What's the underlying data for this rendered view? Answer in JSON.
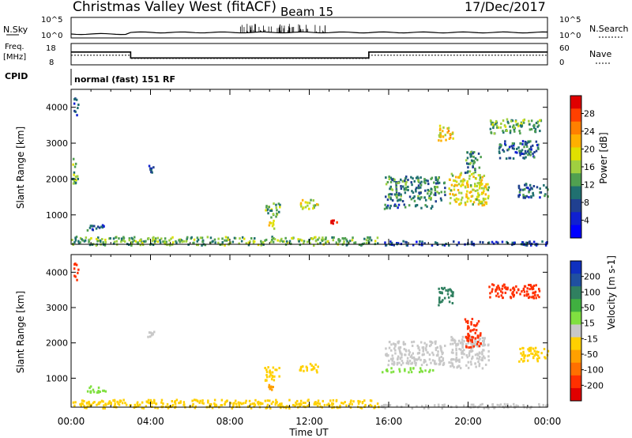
{
  "header": {
    "station": "Christmas Valley West (fitACF)",
    "beam": "Beam 15",
    "date": "17/Dec/2017"
  },
  "status_panel": {
    "noise": {
      "left_label": "N.Sky",
      "right_label": "N.Search",
      "left_ticks": [
        "10^5",
        "10^0"
      ],
      "right_ticks": [
        "10^5",
        "10^0"
      ]
    },
    "freq": {
      "left_label_lines": [
        "Freq.",
        "[MHz]"
      ],
      "right_label": "Nave",
      "left_ticks": [
        "18",
        "8"
      ],
      "right_ticks": [
        "60",
        "0"
      ],
      "freq_steps_mhz": [
        {
          "t0": 0.0,
          "t1": 3.0,
          "value": 14.0
        },
        {
          "t0": 3.0,
          "t1": 15.0,
          "value": 11.2
        },
        {
          "t0": 15.0,
          "t1": 24.0,
          "value": 14.0
        }
      ],
      "nave_steps": [
        {
          "t0": 0.0,
          "t1": 3.0,
          "value": 27
        },
        {
          "t0": 3.0,
          "t1": 15.0,
          "value": 18
        },
        {
          "t0": 15.0,
          "t1": 24.0,
          "value": 27
        }
      ]
    },
    "cpid_label": "CPID",
    "cpid_text": "normal (fast) 151 RF"
  },
  "chart_data": [
    {
      "type": "heatmap",
      "panel": "power",
      "xlabel": "",
      "ylabel": "Slant Range [km]",
      "xlim_hours": [
        0,
        24
      ],
      "ylim_km": [
        180,
        4500
      ],
      "yticks": [
        "4000",
        "3000",
        "2000",
        "1000"
      ],
      "colorbar": {
        "label": "Power [dB]",
        "ticks": [
          "28",
          "24",
          "20",
          "16",
          "12",
          "8",
          "4"
        ],
        "colors": [
          "#e00000",
          "#ff4000",
          "#ff8000",
          "#ffb000",
          "#e0e000",
          "#a0d040",
          "#50a050",
          "#207070",
          "#204090",
          "#1020d0",
          "#0000ff"
        ]
      },
      "patches": [
        {
          "t0": 0.1,
          "t1": 0.35,
          "r0": 3800,
          "r1": 4300,
          "v": 8
        },
        {
          "t0": 0.0,
          "t1": 0.3,
          "r0": 1800,
          "r1": 2600,
          "v": 14
        },
        {
          "t0": 0.7,
          "t1": 1.7,
          "r0": 600,
          "r1": 800,
          "v": 9
        },
        {
          "t0": 3.8,
          "t1": 4.2,
          "r0": 2200,
          "r1": 2400,
          "v": 8
        },
        {
          "t0": 9.7,
          "t1": 10.5,
          "r0": 950,
          "r1": 1350,
          "v": 14
        },
        {
          "t0": 9.9,
          "t1": 10.2,
          "r0": 650,
          "r1": 900,
          "v": 20
        },
        {
          "t0": 11.4,
          "t1": 12.4,
          "r0": 1200,
          "r1": 1450,
          "v": 18
        },
        {
          "t0": 13.0,
          "t1": 13.4,
          "r0": 780,
          "r1": 880,
          "v": 28
        },
        {
          "t0": 15.5,
          "t1": 18.2,
          "r0": 1200,
          "r1": 1320,
          "v": 10
        },
        {
          "t0": 15.8,
          "t1": 18.8,
          "r0": 1400,
          "r1": 2100,
          "v": 12
        },
        {
          "t0": 18.4,
          "t1": 19.2,
          "r0": 3100,
          "r1": 3600,
          "v": 20
        },
        {
          "t0": 19.0,
          "t1": 21.0,
          "r0": 1300,
          "r1": 2200,
          "v": 18
        },
        {
          "t0": 19.8,
          "t1": 20.6,
          "r0": 2200,
          "r1": 2800,
          "v": 12
        },
        {
          "t0": 21.0,
          "t1": 23.7,
          "r0": 3300,
          "r1": 3700,
          "v": 14
        },
        {
          "t0": 21.5,
          "t1": 23.5,
          "r0": 2600,
          "r1": 3100,
          "v": 10
        },
        {
          "t0": 22.5,
          "t1": 24.0,
          "r0": 1500,
          "r1": 1900,
          "v": 10
        },
        {
          "t0": 0.0,
          "t1": 15.5,
          "r0": 180,
          "r1": 420,
          "v": 14
        },
        {
          "t0": 15.5,
          "t1": 24.0,
          "r0": 180,
          "r1": 300,
          "v": 8
        }
      ]
    },
    {
      "type": "heatmap",
      "panel": "velocity",
      "xlabel": "Time UT",
      "ylabel": "Slant Range [km]",
      "xlim_hours": [
        0,
        24
      ],
      "ylim_km": [
        180,
        4500
      ],
      "xticks": [
        "00:00",
        "04:00",
        "08:00",
        "12:00",
        "16:00",
        "20:00",
        "00:00"
      ],
      "yticks": [
        "4000",
        "3000",
        "2000",
        "1000"
      ],
      "colorbar": {
        "label": "Velocity [m s-1]",
        "ticks": [
          "200",
          "100",
          "50",
          "15",
          "-15",
          "-50",
          "-100",
          "-200"
        ],
        "colors": [
          "#1030c0",
          "#2050a0",
          "#308060",
          "#40b040",
          "#80e040",
          "#c8c8c8",
          "#ffd000",
          "#ffa000",
          "#ff7000",
          "#ff3000",
          "#e00000"
        ]
      },
      "patches": [
        {
          "t0": 0.1,
          "t1": 0.35,
          "r0": 3800,
          "r1": 4300,
          "v": -180
        },
        {
          "t0": 0.7,
          "t1": 1.7,
          "r0": 600,
          "r1": 800,
          "v": 40
        },
        {
          "t0": 3.8,
          "t1": 4.2,
          "r0": 2200,
          "r1": 2400,
          "v": 0
        },
        {
          "t0": 9.7,
          "t1": 10.5,
          "r0": 950,
          "r1": 1350,
          "v": -60
        },
        {
          "t0": 9.9,
          "t1": 10.2,
          "r0": 650,
          "r1": 900,
          "v": -100
        },
        {
          "t0": 11.4,
          "t1": 12.4,
          "r0": 1200,
          "r1": 1450,
          "v": -50
        },
        {
          "t0": 15.5,
          "t1": 18.2,
          "r0": 1200,
          "r1": 1320,
          "v": 40
        },
        {
          "t0": 15.8,
          "t1": 18.8,
          "r0": 1400,
          "r1": 2100,
          "v": 0
        },
        {
          "t0": 18.4,
          "t1": 19.2,
          "r0": 3100,
          "r1": 3600,
          "v": 150
        },
        {
          "t0": 19.0,
          "t1": 21.0,
          "r0": 1300,
          "r1": 2200,
          "v": 0
        },
        {
          "t0": 19.8,
          "t1": 20.6,
          "r0": 1900,
          "r1": 2800,
          "v": -200
        },
        {
          "t0": 21.0,
          "t1": 23.7,
          "r0": 3300,
          "r1": 3700,
          "v": -200
        },
        {
          "t0": 22.5,
          "t1": 24.0,
          "r0": 1500,
          "r1": 1900,
          "v": -60
        },
        {
          "t0": 0.0,
          "t1": 15.5,
          "r0": 180,
          "r1": 420,
          "v": -30
        },
        {
          "t0": 15.5,
          "t1": 24.0,
          "r0": 180,
          "r1": 300,
          "v": -15
        }
      ]
    }
  ]
}
